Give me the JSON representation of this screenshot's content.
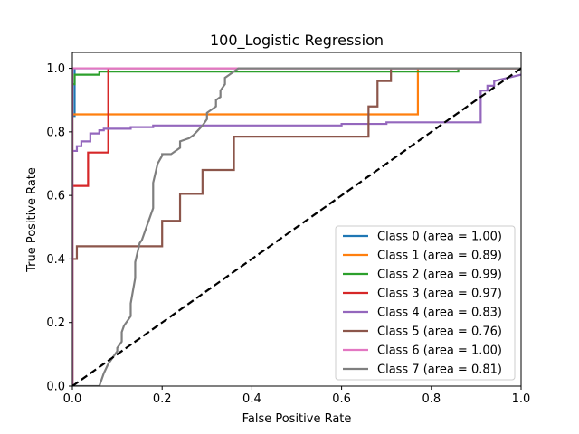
{
  "chart_data": {
    "type": "line",
    "title": "100_Logistic Regression",
    "xlabel": "False Positive Rate",
    "ylabel": "True Positive Rate",
    "xlim": [
      0,
      1
    ],
    "ylim": [
      0,
      1.05
    ],
    "xticks": [
      "0.0",
      "0.2",
      "0.4",
      "0.6",
      "0.8",
      "1.0"
    ],
    "yticks": [
      "0.0",
      "0.2",
      "0.4",
      "0.6",
      "0.8",
      "1.0"
    ],
    "grid": false,
    "legend_position": "lower right",
    "diagonal": {
      "x": [
        0,
        1
      ],
      "y": [
        0,
        1
      ],
      "style": "dashed",
      "color": "#000000"
    },
    "series": [
      {
        "name": "Class 0 (area = 1.00)",
        "color": "#1f77b4",
        "x": [
          0,
          0,
          0.005,
          0.005,
          1
        ],
        "y": [
          0,
          0.85,
          0.85,
          1.0,
          1.0
        ]
      },
      {
        "name": "Class 1 (area = 0.89)",
        "color": "#ff7f0e",
        "x": [
          0,
          0,
          0.77,
          0.77,
          1
        ],
        "y": [
          0,
          0.855,
          0.855,
          1.0,
          1.0
        ]
      },
      {
        "name": "Class 2 (area = 0.99)",
        "color": "#2ca02c",
        "x": [
          0,
          0,
          0.005,
          0.005,
          0.06,
          0.06,
          0.86,
          0.86,
          1
        ],
        "y": [
          0,
          0.95,
          0.95,
          0.98,
          0.98,
          0.99,
          0.99,
          1.0,
          1.0
        ]
      },
      {
        "name": "Class 3 (area = 0.97)",
        "color": "#d62728",
        "x": [
          0,
          0,
          0.035,
          0.035,
          0.08,
          0.08,
          1
        ],
        "y": [
          0,
          0.63,
          0.63,
          0.735,
          0.735,
          1.0,
          1.0
        ]
      },
      {
        "name": "Class 4 (area = 0.83)",
        "color": "#9467bd",
        "x": [
          0,
          0,
          0.01,
          0.01,
          0.02,
          0.02,
          0.04,
          0.04,
          0.06,
          0.06,
          0.07,
          0.07,
          0.13,
          0.13,
          0.18,
          0.18,
          0.6,
          0.6,
          0.7,
          0.7,
          0.91,
          0.91,
          0.925,
          0.925,
          0.94,
          0.94,
          1
        ],
        "y": [
          0,
          0.74,
          0.74,
          0.755,
          0.755,
          0.77,
          0.77,
          0.795,
          0.795,
          0.805,
          0.805,
          0.81,
          0.81,
          0.815,
          0.815,
          0.82,
          0.82,
          0.825,
          0.825,
          0.83,
          0.83,
          0.93,
          0.93,
          0.945,
          0.945,
          0.96,
          0.98
        ]
      },
      {
        "name": "Class 5 (area = 0.76)",
        "color": "#8c564b",
        "x": [
          0,
          0,
          0.01,
          0.01,
          0.2,
          0.2,
          0.24,
          0.24,
          0.29,
          0.29,
          0.36,
          0.36,
          0.66,
          0.66,
          0.68,
          0.68,
          0.71,
          0.71,
          1
        ],
        "y": [
          0,
          0.4,
          0.4,
          0.44,
          0.44,
          0.52,
          0.52,
          0.605,
          0.605,
          0.68,
          0.68,
          0.785,
          0.785,
          0.88,
          0.88,
          0.96,
          0.96,
          1.0,
          1.0
        ]
      },
      {
        "name": "Class 6 (area = 1.00)",
        "color": "#e377c2",
        "x": [
          0,
          0,
          1
        ],
        "y": [
          0,
          1.0,
          1.0
        ]
      },
      {
        "name": "Class 7 (area = 0.81)",
        "color": "#7f7f7f",
        "x": [
          0,
          0.06,
          0.07,
          0.08,
          0.09,
          0.095,
          0.1,
          0.1,
          0.11,
          0.11,
          0.115,
          0.12,
          0.13,
          0.13,
          0.135,
          0.14,
          0.14,
          0.145,
          0.15,
          0.155,
          0.16,
          0.165,
          0.17,
          0.18,
          0.18,
          0.19,
          0.2,
          0.2,
          0.21,
          0.22,
          0.24,
          0.24,
          0.26,
          0.27,
          0.29,
          0.3,
          0.3,
          0.32,
          0.32,
          0.33,
          0.33,
          0.34,
          0.34,
          0.35,
          0.36,
          0.36,
          0.37,
          0.4,
          0.5,
          0.6,
          0.7,
          0.8,
          0.9,
          1.0
        ],
        "y": [
          0,
          0.0,
          0.04,
          0.07,
          0.09,
          0.1,
          0.11,
          0.12,
          0.14,
          0.17,
          0.19,
          0.2,
          0.22,
          0.26,
          0.3,
          0.34,
          0.39,
          0.42,
          0.45,
          0.46,
          0.48,
          0.5,
          0.52,
          0.56,
          0.64,
          0.7,
          0.725,
          0.73,
          0.73,
          0.73,
          0.75,
          0.77,
          0.78,
          0.79,
          0.82,
          0.84,
          0.86,
          0.88,
          0.9,
          0.91,
          0.93,
          0.95,
          0.97,
          0.98,
          0.99,
          0.99,
          1.0,
          1.0,
          1.0,
          1.0,
          1.0,
          1.0,
          1.0,
          1.0
        ]
      }
    ]
  }
}
